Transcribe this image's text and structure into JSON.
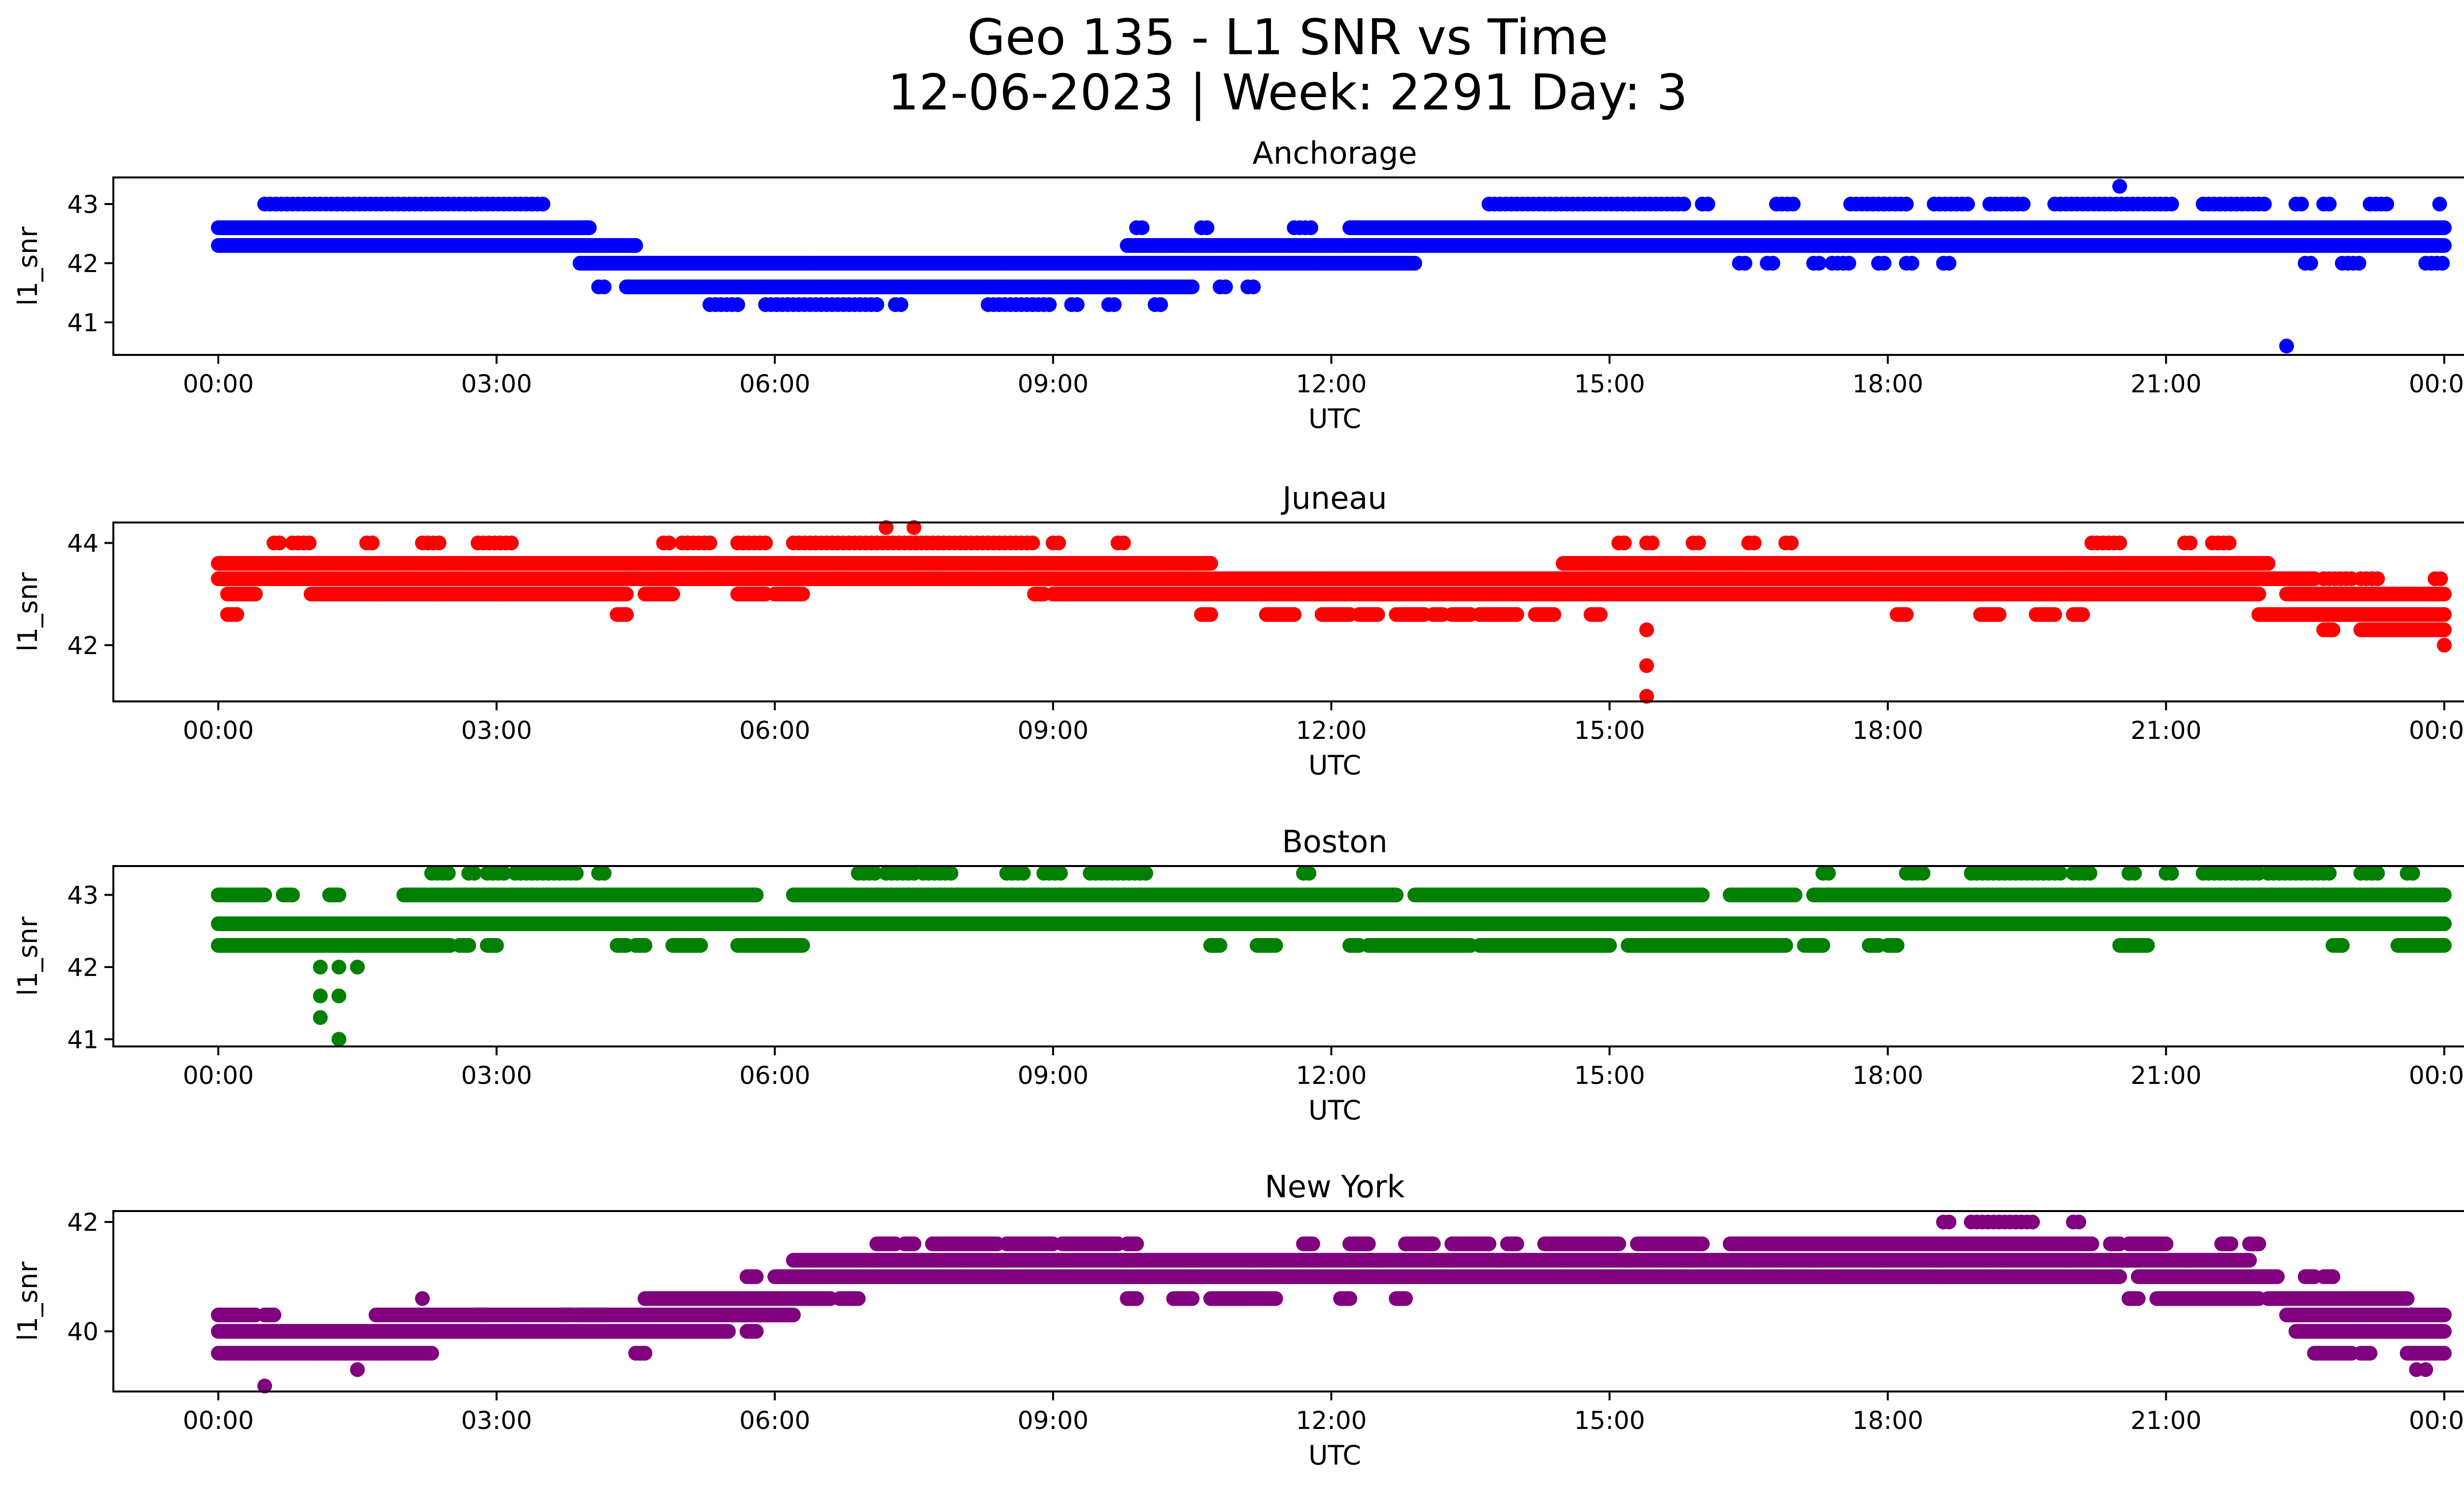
{
  "figure": {
    "title_line1": "Geo 135 - L1 SNR vs Time",
    "title_line2": "12-06-2023 | Week: 2291 Day: 3"
  },
  "chart_data": [
    {
      "type": "scatter",
      "title": "Anchorage",
      "color": "#0000ff",
      "xlabel": "UTC",
      "ylabel": "l1_snr",
      "x_unit": "UTC hours (0-24)",
      "xticks": [
        "00:00",
        "03:00",
        "06:00",
        "09:00",
        "12:00",
        "15:00",
        "18:00",
        "21:00",
        "00:00"
      ],
      "yticks": [
        41,
        42,
        43
      ],
      "ylim": [
        40.45,
        43.45
      ],
      "bands": [
        {
          "y": 43.0,
          "ranges": [
            [
              0.5,
              3.5
            ],
            [
              13.7,
              15.8
            ],
            [
              16.0,
              16.1
            ],
            [
              16.8,
              17.0
            ],
            [
              17.6,
              18.2
            ],
            [
              18.5,
              18.9
            ],
            [
              19.1,
              19.5
            ],
            [
              19.8,
              21.1
            ],
            [
              21.4,
              22.1
            ],
            [
              22.4,
              22.5
            ],
            [
              22.7,
              22.8
            ],
            [
              23.2,
              23.4
            ],
            [
              23.95,
              24.0
            ]
          ],
          "dense": false
        },
        {
          "y": 42.6,
          "ranges": [
            [
              0.0,
              4.0
            ],
            [
              12.2,
              24.0
            ]
          ],
          "dense": true
        },
        {
          "y": 42.6,
          "ranges": [
            [
              9.9,
              10.0
            ],
            [
              10.6,
              10.7
            ],
            [
              11.6,
              11.8
            ]
          ],
          "dense": false
        },
        {
          "y": 42.3,
          "ranges": [
            [
              0.0,
              4.5
            ],
            [
              9.8,
              24.0
            ]
          ],
          "dense": true
        },
        {
          "y": 42.0,
          "ranges": [
            [
              3.9,
              12.9
            ]
          ],
          "dense": true
        },
        {
          "y": 42.0,
          "ranges": [
            [
              16.4,
              16.5
            ],
            [
              16.7,
              16.8
            ],
            [
              17.2,
              17.3
            ],
            [
              17.4,
              17.6
            ],
            [
              17.9,
              18.0
            ],
            [
              18.2,
              18.3
            ],
            [
              18.6,
              18.7
            ],
            [
              22.5,
              22.6
            ],
            [
              22.9,
              23.1
            ],
            [
              23.8,
              24.0
            ]
          ],
          "dense": false
        },
        {
          "y": 41.6,
          "ranges": [
            [
              4.4,
              10.5
            ]
          ],
          "dense": true
        },
        {
          "y": 41.6,
          "ranges": [
            [
              4.1,
              4.2
            ],
            [
              10.8,
              10.9
            ],
            [
              11.1,
              11.2
            ]
          ],
          "dense": false
        },
        {
          "y": 41.3,
          "ranges": [
            [
              5.3,
              5.6
            ],
            [
              5.9,
              7.1
            ],
            [
              7.3,
              7.4
            ],
            [
              8.3,
              9.0
            ],
            [
              9.2,
              9.3
            ],
            [
              9.6,
              9.7
            ],
            [
              10.1,
              10.2
            ]
          ],
          "dense": false
        }
      ],
      "points": [
        [
          20.5,
          43.3
        ],
        [
          22.3,
          40.6
        ]
      ]
    },
    {
      "type": "scatter",
      "title": "Juneau",
      "color": "#ff0000",
      "xlabel": "UTC",
      "ylabel": "l1_snr",
      "x_unit": "UTC hours (0-24)",
      "xticks": [
        "00:00",
        "03:00",
        "06:00",
        "09:00",
        "12:00",
        "15:00",
        "18:00",
        "21:00",
        "00:00"
      ],
      "yticks": [
        42,
        44
      ],
      "ylim": [
        40.9,
        44.4
      ],
      "bands": [
        {
          "y": 44.0,
          "ranges": [
            [
              0.6,
              0.7
            ],
            [
              0.8,
              1.0
            ],
            [
              1.6,
              1.7
            ],
            [
              2.2,
              2.4
            ],
            [
              2.8,
              3.2
            ],
            [
              4.8,
              4.9
            ],
            [
              5.0,
              5.3
            ],
            [
              5.6,
              5.9
            ],
            [
              6.2,
              8.8
            ],
            [
              9.0,
              9.1
            ],
            [
              9.7,
              9.8
            ],
            [
              15.1,
              15.2
            ],
            [
              15.4,
              15.5
            ],
            [
              15.9,
              16.0
            ],
            [
              16.5,
              16.6
            ],
            [
              16.9,
              17.0
            ],
            [
              20.2,
              20.5
            ],
            [
              21.2,
              21.3
            ],
            [
              21.5,
              21.7
            ]
          ],
          "dense": false
        },
        {
          "y": 43.6,
          "ranges": [
            [
              0.0,
              10.7
            ],
            [
              14.5,
              22.1
            ]
          ],
          "dense": true
        },
        {
          "y": 43.3,
          "ranges": [
            [
              0.0,
              22.6
            ]
          ],
          "dense": true
        },
        {
          "y": 43.0,
          "ranges": [
            [
              0.1,
              0.4
            ],
            [
              1.0,
              4.4
            ],
            [
              4.6,
              4.9
            ],
            [
              5.6,
              5.9
            ],
            [
              6.0,
              6.3
            ],
            [
              8.8,
              8.9
            ],
            [
              9.0,
              22.0
            ],
            [
              22.3,
              24.0
            ]
          ],
          "dense": true
        },
        {
          "y": 42.6,
          "ranges": [
            [
              0.1,
              0.2
            ],
            [
              4.3,
              4.4
            ],
            [
              10.6,
              10.7
            ],
            [
              11.3,
              11.6
            ],
            [
              11.9,
              12.2
            ],
            [
              12.3,
              12.5
            ],
            [
              12.7,
              13.0
            ],
            [
              13.1,
              13.2
            ],
            [
              13.3,
              13.5
            ],
            [
              13.6,
              14.0
            ],
            [
              14.2,
              14.4
            ],
            [
              14.8,
              14.9
            ],
            [
              18.1,
              18.2
            ],
            [
              19.0,
              19.2
            ],
            [
              19.6,
              19.8
            ],
            [
              20.0,
              20.1
            ],
            [
              22.0,
              24.0
            ]
          ],
          "dense": true
        },
        {
          "y": 42.3,
          "ranges": [
            [
              22.7,
              22.8
            ],
            [
              23.1,
              24.0
            ]
          ],
          "dense": true
        },
        {
          "y": 43.3,
          "ranges": [
            [
              22.7,
              23.0
            ],
            [
              23.1,
              23.3
            ],
            [
              23.9,
              24.0
            ]
          ],
          "dense": false
        }
      ],
      "points": [
        [
          7.2,
          44.3
        ],
        [
          7.5,
          44.3
        ],
        [
          15.4,
          42.3
        ],
        [
          15.4,
          41.6
        ],
        [
          15.4,
          41.0
        ],
        [
          24.0,
          42.0
        ]
      ]
    },
    {
      "type": "scatter",
      "title": "Boston",
      "color": "#008000",
      "xlabel": "UTC",
      "ylabel": "l1_snr",
      "x_unit": "UTC hours (0-24)",
      "xticks": [
        "00:00",
        "03:00",
        "06:00",
        "09:00",
        "12:00",
        "15:00",
        "18:00",
        "21:00",
        "00:00"
      ],
      "yticks": [
        41,
        42,
        43
      ],
      "ylim": [
        40.9,
        43.4
      ],
      "bands": [
        {
          "y": 43.3,
          "ranges": [
            [
              2.3,
              2.5
            ],
            [
              2.7,
              2.8
            ],
            [
              2.9,
              3.1
            ],
            [
              3.2,
              3.9
            ],
            [
              4.1,
              4.2
            ],
            [
              6.9,
              7.1
            ],
            [
              7.2,
              7.5
            ],
            [
              7.6,
              7.9
            ],
            [
              8.5,
              8.7
            ],
            [
              8.9,
              9.1
            ],
            [
              9.4,
              10.0
            ],
            [
              11.7,
              11.8
            ],
            [
              17.3,
              17.4
            ],
            [
              18.2,
              18.4
            ],
            [
              18.9,
              19.9
            ],
            [
              20.0,
              20.2
            ],
            [
              20.6,
              20.7
            ],
            [
              21.0,
              21.1
            ],
            [
              21.4,
              22.0
            ],
            [
              22.1,
              22.8
            ],
            [
              23.1,
              23.3
            ],
            [
              23.6,
              23.7
            ]
          ],
          "dense": false
        },
        {
          "y": 43.0,
          "ranges": [
            [
              0.0,
              0.5
            ],
            [
              0.7,
              0.8
            ],
            [
              1.2,
              1.3
            ],
            [
              2.0,
              5.8
            ],
            [
              6.2,
              12.7
            ],
            [
              12.9,
              16.0
            ],
            [
              16.3,
              17.0
            ],
            [
              17.2,
              24.0
            ]
          ],
          "dense": true
        },
        {
          "y": 42.6,
          "ranges": [
            [
              0.0,
              24.0
            ]
          ],
          "dense": true
        },
        {
          "y": 42.3,
          "ranges": [
            [
              0.0,
              2.5
            ],
            [
              2.6,
              2.7
            ],
            [
              2.9,
              3.0
            ],
            [
              4.3,
              4.4
            ],
            [
              4.5,
              4.6
            ],
            [
              4.9,
              5.2
            ],
            [
              5.6,
              6.3
            ],
            [
              10.7,
              10.8
            ],
            [
              11.2,
              11.4
            ],
            [
              12.2,
              12.3
            ],
            [
              12.4,
              13.5
            ],
            [
              13.6,
              15.0
            ],
            [
              15.2,
              16.9
            ],
            [
              17.1,
              17.3
            ],
            [
              17.8,
              17.9
            ],
            [
              18.0,
              18.1
            ],
            [
              20.5,
              20.8
            ],
            [
              22.8,
              22.9
            ],
            [
              23.5,
              24.0
            ]
          ],
          "dense": true
        }
      ],
      "points": [
        [
          1.1,
          42.0
        ],
        [
          1.3,
          42.0
        ],
        [
          1.5,
          42.0
        ],
        [
          1.1,
          41.6
        ],
        [
          1.3,
          41.6
        ],
        [
          1.1,
          41.3
        ],
        [
          1.3,
          41.0
        ]
      ]
    },
    {
      "type": "scatter",
      "title": "New York",
      "color": "#800080",
      "xlabel": "UTC",
      "ylabel": "l1_snr",
      "x_unit": "UTC hours (0-24)",
      "xticks": [
        "00:00",
        "03:00",
        "06:00",
        "09:00",
        "12:00",
        "15:00",
        "18:00",
        "21:00",
        "00:00"
      ],
      "yticks": [
        40,
        42
      ],
      "ylim": [
        38.9,
        42.2
      ],
      "bands": [
        {
          "y": 42.0,
          "ranges": [
            [
              18.6,
              18.7
            ],
            [
              18.9,
              19.6
            ],
            [
              20.0,
              20.1
            ]
          ],
          "dense": false
        },
        {
          "y": 41.6,
          "ranges": [
            [
              7.1,
              7.3
            ],
            [
              7.4,
              7.5
            ],
            [
              7.7,
              8.4
            ],
            [
              8.5,
              9.0
            ],
            [
              9.1,
              9.7
            ],
            [
              9.8,
              9.9
            ],
            [
              11.7,
              11.8
            ],
            [
              12.2,
              12.4
            ],
            [
              12.8,
              13.1
            ],
            [
              13.3,
              13.7
            ],
            [
              13.9,
              14.0
            ],
            [
              14.3,
              15.1
            ],
            [
              15.3,
              16.0
            ],
            [
              16.3,
              16.5
            ],
            [
              16.5,
              20.2
            ],
            [
              20.4,
              20.5
            ],
            [
              20.6,
              21.0
            ],
            [
              21.6,
              21.7
            ],
            [
              21.9,
              22.0
            ]
          ],
          "dense": true
        },
        {
          "y": 41.3,
          "ranges": [
            [
              6.2,
              21.9
            ]
          ],
          "dense": true
        },
        {
          "y": 41.0,
          "ranges": [
            [
              5.7,
              5.8
            ],
            [
              6.0,
              20.5
            ],
            [
              20.7,
              22.2
            ],
            [
              22.5,
              22.6
            ],
            [
              22.7,
              22.8
            ]
          ],
          "dense": true
        },
        {
          "y": 40.6,
          "ranges": [
            [
              4.6,
              6.6
            ],
            [
              6.7,
              6.9
            ],
            [
              9.8,
              9.9
            ],
            [
              10.3,
              10.5
            ],
            [
              10.7,
              11.4
            ],
            [
              12.1,
              12.2
            ],
            [
              12.7,
              12.8
            ],
            [
              20.6,
              20.7
            ],
            [
              20.9,
              22.0
            ],
            [
              22.1,
              23.6
            ]
          ],
          "dense": true
        },
        {
          "y": 40.3,
          "ranges": [
            [
              0.0,
              0.4
            ],
            [
              0.5,
              0.6
            ],
            [
              1.7,
              6.2
            ],
            [
              2.8,
              2.9
            ],
            [
              3.7,
              3.8
            ],
            [
              3.9,
              4.2
            ],
            [
              22.3,
              24.0
            ]
          ],
          "dense": true
        },
        {
          "y": 40.0,
          "ranges": [
            [
              0.0,
              5.5
            ],
            [
              5.7,
              5.8
            ],
            [
              22.4,
              24.0
            ]
          ],
          "dense": true
        },
        {
          "y": 39.6,
          "ranges": [
            [
              0.0,
              2.3
            ],
            [
              4.5,
              4.6
            ],
            [
              22.6,
              23.0
            ],
            [
              23.1,
              23.2
            ],
            [
              23.6,
              24.0
            ]
          ],
          "dense": true
        }
      ],
      "points": [
        [
          0.5,
          39.0
        ],
        [
          1.5,
          39.3
        ],
        [
          2.2,
          40.6
        ],
        [
          23.7,
          39.3
        ],
        [
          23.8,
          39.3
        ]
      ]
    }
  ]
}
